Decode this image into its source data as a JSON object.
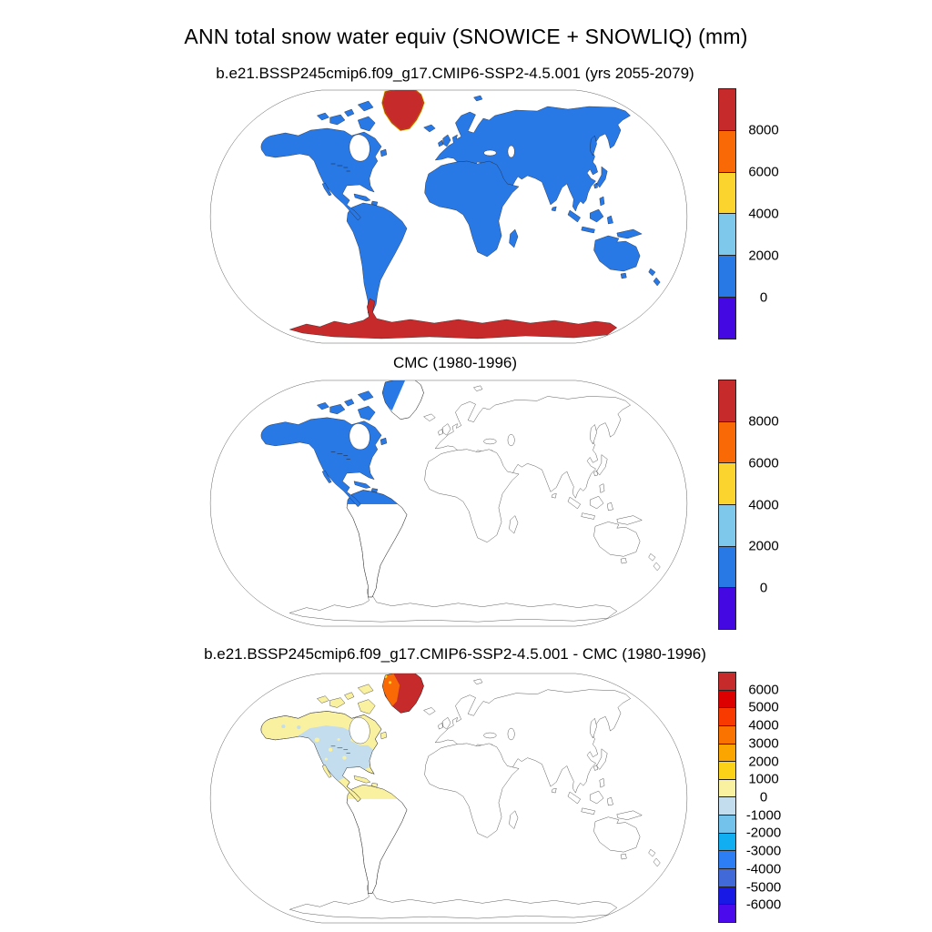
{
  "figure": {
    "title": "ANN total snow water equiv (SNOWICE + SNOWLIQ) (mm)",
    "units": "mm"
  },
  "palette": {
    "land1": "#2878e6",
    "red1": "#c62a2a",
    "orange1": "#f96a06",
    "yellow1": "#fbd52e",
    "pyellow": "#faf1a0",
    "pblue": "#c3ddee",
    "coast": "#1a1a1a"
  },
  "chart_data": {
    "type": "heatmap",
    "subtype": "global choropleth maps (Robinson-style projection), 3 stacked panels",
    "title": "ANN total snow water equiv (SNOWICE + SNOWLIQ) (mm)",
    "units": "mm",
    "legend_position": "right of each panel",
    "panels": [
      {
        "title": "b.e21.BSSP245cmip6.f09_g17.CMIP6-SSP2-4.5.001 (yrs 2055-2079)",
        "colorbar": {
          "labels": [
            "8000",
            "6000",
            "4000",
            "2000",
            "0"
          ],
          "interval": 2000,
          "colors_top_to_bottom": [
            "#c62a2a",
            "#f96a06",
            "#fbd52e",
            "#7dc8eb",
            "#2878e6",
            "#4409e3"
          ]
        },
        "depicted_values": [
          {
            "region": "Greenland interior",
            "value_mm": "> 8000"
          },
          {
            "region": "Greenland coastal fringe",
            "value_mm": "4000-8000"
          },
          {
            "region": "Antarctica",
            "value_mm": "> 8000"
          },
          {
            "region": "all other land",
            "value_mm": "0-2000"
          },
          {
            "region": "oceans",
            "value_mm": "not shaded"
          }
        ]
      },
      {
        "title": "CMC (1980-1996)",
        "colorbar": {
          "labels": [
            "8000",
            "6000",
            "4000",
            "2000",
            "0"
          ],
          "interval": 2000,
          "colors_top_to_bottom": [
            "#c62a2a",
            "#f96a06",
            "#fbd52e",
            "#7dc8eb",
            "#2878e6",
            "#4409e3"
          ]
        },
        "depicted_values": [
          {
            "region": "North America incl. western Greenland wedge, Caribbean",
            "value_mm": "0-2000"
          },
          {
            "region": "northern South America (data box to equator)",
            "value_mm": "0-2000"
          },
          {
            "region": "rest of world",
            "value_mm": "no data / not shaded"
          }
        ]
      },
      {
        "title": "b.e21.BSSP245cmip6.f09_g17.CMIP6-SSP2-4.5.001 - CMC (1980-1996)",
        "colorbar": {
          "labels": [
            "6000",
            "5000",
            "4000",
            "3000",
            "2000",
            "1000",
            "0",
            "-1000",
            "-2000",
            "-3000",
            "-4000",
            "-5000",
            "-6000"
          ],
          "interval": 1000,
          "colors_top_to_bottom": [
            "#c62a2a",
            "#dc0000",
            "#f93a00",
            "#fa7300",
            "#fba500",
            "#fcd219",
            "#faf1a0",
            "#c3ddee",
            "#72c2ec",
            "#12aef2",
            "#2d7df5",
            "#4169d7",
            "#1919e6",
            "#4b0aeb"
          ]
        },
        "depicted_values": [
          {
            "region": "Greenland interior",
            "value_mm": "> 6000"
          },
          {
            "region": "western Greenland edge",
            "value_mm": "3000-5000"
          },
          {
            "region": "central North America / USA",
            "value_mm": "-1000-0"
          },
          {
            "region": "Alaska, Canadian Arctic, Labrador",
            "value_mm": "0-1000"
          },
          {
            "region": "Mexico, Central America, Caribbean",
            "value_mm": "0-1000"
          },
          {
            "region": "northern South America (data box to equator)",
            "value_mm": "0-1000"
          },
          {
            "region": "rest of world",
            "value_mm": "no data / not shaded"
          }
        ]
      }
    ]
  }
}
